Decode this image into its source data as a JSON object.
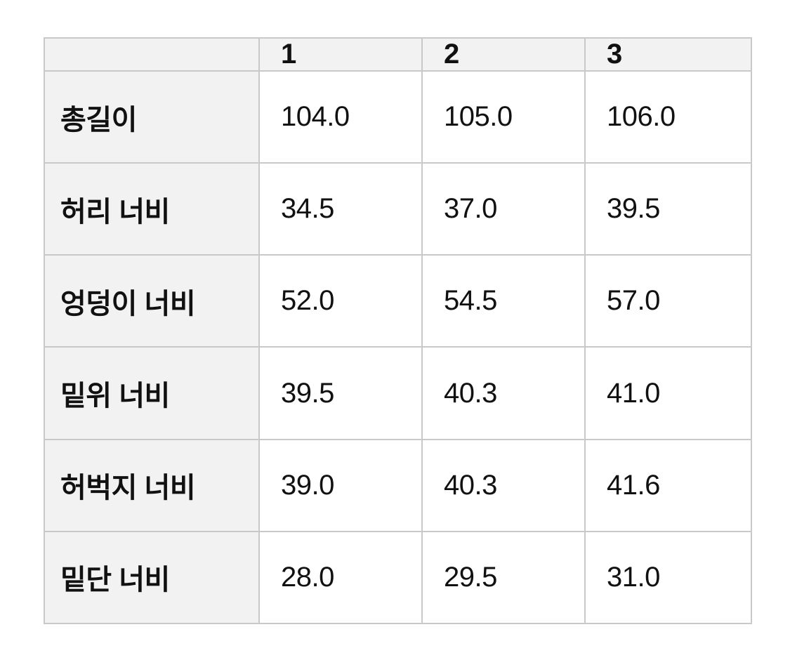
{
  "size_chart": {
    "columns": [
      "",
      "1",
      "2",
      "3"
    ],
    "rows": [
      {
        "label": "총길이",
        "values": [
          "104.0",
          "105.0",
          "106.0"
        ]
      },
      {
        "label": "허리 너비",
        "values": [
          "34.5",
          "37.0",
          "39.5"
        ]
      },
      {
        "label": "엉덩이 너비",
        "values": [
          "52.0",
          "54.5",
          "57.0"
        ]
      },
      {
        "label": "밑위 너비",
        "values": [
          "39.5",
          "40.3",
          "41.0"
        ]
      },
      {
        "label": "허벅지 너비",
        "values": [
          "39.0",
          "40.3",
          "41.6"
        ]
      },
      {
        "label": "밑단 너비",
        "values": [
          "28.0",
          "29.5",
          "31.0"
        ]
      }
    ],
    "colors": {
      "header_background": "#f2f2f2",
      "cell_background": "#ffffff",
      "border": "#c9c9c9",
      "text": "#111111"
    }
  }
}
